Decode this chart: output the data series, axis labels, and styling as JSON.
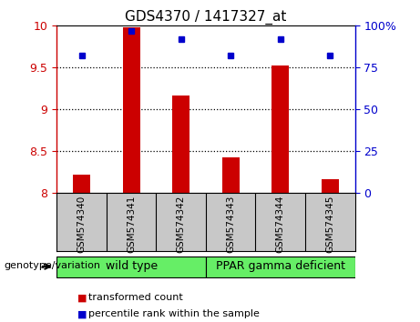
{
  "title": "GDS4370 / 1417327_at",
  "samples": [
    "GSM574340",
    "GSM574341",
    "GSM574342",
    "GSM574343",
    "GSM574344",
    "GSM574345"
  ],
  "transformed_count": [
    8.22,
    9.98,
    9.17,
    8.43,
    9.52,
    8.17
  ],
  "percentile_rank": [
    82,
    97,
    92,
    82,
    92,
    82
  ],
  "bar_bottom": 8.0,
  "ylim_left": [
    8.0,
    10.0
  ],
  "ylim_right": [
    0,
    100
  ],
  "yticks_left": [
    8.0,
    8.5,
    9.0,
    9.5,
    10.0
  ],
  "yticks_right": [
    0,
    25,
    50,
    75,
    100
  ],
  "bar_color": "#cc0000",
  "marker_color": "#0000cc",
  "group1_label": "wild type",
  "group2_label": "PPAR gamma deficient",
  "group1_indices": [
    0,
    1,
    2
  ],
  "group2_indices": [
    3,
    4,
    5
  ],
  "group_color": "#66ee66",
  "genotype_label": "genotype/variation",
  "legend1": "transformed count",
  "legend2": "percentile rank within the sample",
  "tick_area_color": "#c8c8c8",
  "bar_width": 0.35
}
